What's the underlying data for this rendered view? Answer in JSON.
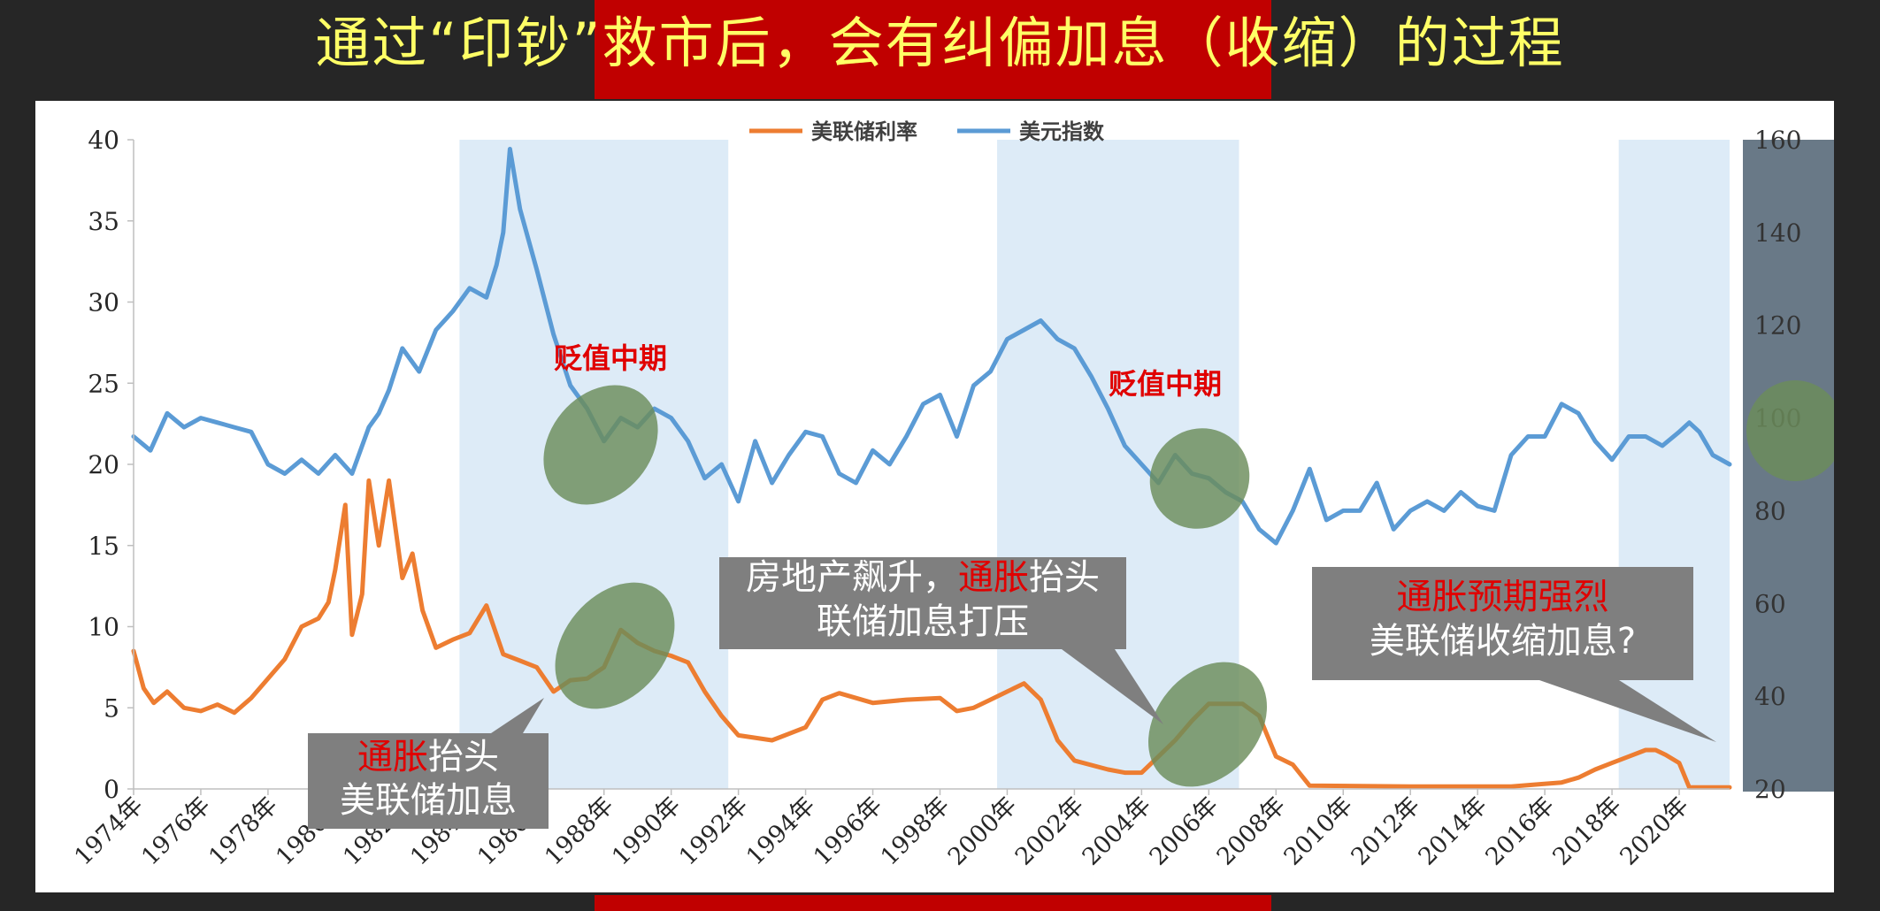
{
  "slide": {
    "title_part1": "通过“印钞”",
    "title_part2": "救市后，会有纠偏加息（收缩）的过程"
  },
  "colors": {
    "fed_rate": "#ed7d31",
    "dollar_index": "#5b9bd5",
    "shade": "#ddebf7",
    "highlight": "#6b8c5a",
    "callout_bg": "#7f7f7f",
    "accent_red": "#e00000",
    "title_yellow": "#ffff66"
  },
  "annotations": {
    "depreciation_1": "贬值中期",
    "depreciation_2": "贬值中期",
    "callout_1": {
      "red": "通胀",
      "line1_rest": "抬头",
      "line2": "美联储加息"
    },
    "callout_2": {
      "line1_pre": "房地产飙升，",
      "red": "通胀",
      "line1_post": "抬头",
      "line2": "联储加息打压"
    },
    "callout_3": {
      "red": "通胀预期强烈",
      "line2": "美联储收缩加息?"
    }
  },
  "chart_data": {
    "type": "line",
    "title": "",
    "legend_position": "top-center",
    "x_ticks": [
      "1974年",
      "1976年",
      "1978年",
      "1980年",
      "1982年",
      "1984年",
      "1986年",
      "1988年",
      "1990年",
      "1992年",
      "1994年",
      "1996年",
      "1998年",
      "2000年",
      "2002年",
      "2004年",
      "2006年",
      "2008年",
      "2010年",
      "2012年",
      "2014年",
      "2016年",
      "2018年",
      "2020年"
    ],
    "xlim": [
      1974,
      2021.5
    ],
    "y_left": {
      "lim": [
        0,
        40
      ],
      "ticks": [
        "0",
        "5",
        "10",
        "15",
        "20",
        "25",
        "30",
        "35",
        "40"
      ]
    },
    "y_right": {
      "lim": [
        20,
        160
      ],
      "ticks": [
        "20",
        "40",
        "60",
        "80",
        "100",
        "120",
        "140",
        "160"
      ]
    },
    "grid": false,
    "shaded_periods": [
      [
        1983.7,
        1991.7
      ],
      [
        1999.7,
        2006.9
      ],
      [
        2018.2,
        2021.5
      ]
    ],
    "series": [
      {
        "name": "美联储利率",
        "axis": "left",
        "x": [
          1974.0,
          1974.3,
          1974.6,
          1975.0,
          1975.5,
          1976.0,
          1976.5,
          1977.0,
          1977.5,
          1978.0,
          1978.5,
          1979.0,
          1979.5,
          1979.8,
          1980.0,
          1980.3,
          1980.5,
          1980.8,
          1981.0,
          1981.3,
          1981.6,
          1982.0,
          1982.3,
          1982.6,
          1983.0,
          1983.5,
          1984.0,
          1984.5,
          1985.0,
          1985.5,
          1986.0,
          1986.5,
          1987.0,
          1987.5,
          1988.0,
          1988.5,
          1989.0,
          1989.5,
          1990.0,
          1990.5,
          1991.0,
          1991.5,
          1992.0,
          1993.0,
          1994.0,
          1994.5,
          1995.0,
          1996.0,
          1997.0,
          1998.0,
          1998.5,
          1999.0,
          1999.5,
          2000.0,
          2000.5,
          2001.0,
          2001.5,
          2002.0,
          2003.0,
          2003.5,
          2004.0,
          2004.5,
          2005.0,
          2005.5,
          2006.0,
          2006.5,
          2007.0,
          2007.5,
          2008.0,
          2008.5,
          2009.0,
          2012.0,
          2015.0,
          2015.9,
          2016.5,
          2017.0,
          2017.5,
          2018.0,
          2018.5,
          2019.0,
          2019.3,
          2019.6,
          2020.0,
          2020.3,
          2021.0,
          2021.5
        ],
        "values": [
          8.5,
          6.2,
          5.3,
          6.0,
          5.0,
          4.8,
          5.2,
          4.7,
          5.6,
          6.8,
          8.0,
          10.0,
          10.5,
          11.5,
          13.5,
          17.5,
          9.5,
          12.0,
          19.0,
          15.0,
          19.0,
          13.0,
          14.5,
          11.0,
          8.7,
          9.2,
          9.6,
          11.3,
          8.3,
          7.9,
          7.5,
          6.0,
          6.7,
          6.8,
          7.5,
          9.8,
          9.0,
          8.5,
          8.2,
          7.8,
          6.0,
          4.5,
          3.3,
          3.0,
          3.8,
          5.5,
          5.9,
          5.3,
          5.5,
          5.6,
          4.8,
          5.0,
          5.5,
          6.0,
          6.5,
          5.5,
          3.0,
          1.75,
          1.2,
          1.0,
          1.0,
          2.0,
          3.0,
          4.2,
          5.25,
          5.25,
          5.25,
          4.5,
          2.0,
          1.5,
          0.2,
          0.15,
          0.15,
          0.3,
          0.4,
          0.7,
          1.2,
          1.6,
          2.0,
          2.4,
          2.4,
          2.1,
          1.6,
          0.1,
          0.1,
          0.1
        ]
      },
      {
        "name": "美元指数",
        "axis": "right",
        "x": [
          1974.0,
          1974.5,
          1975.0,
          1975.5,
          1976.0,
          1976.5,
          1977.0,
          1977.5,
          1978.0,
          1978.5,
          1979.0,
          1979.5,
          1980.0,
          1980.5,
          1981.0,
          1981.3,
          1981.6,
          1982.0,
          1982.5,
          1983.0,
          1983.5,
          1984.0,
          1984.5,
          1984.8,
          1985.0,
          1985.2,
          1985.5,
          1986.0,
          1986.5,
          1987.0,
          1987.5,
          1988.0,
          1988.5,
          1989.0,
          1989.5,
          1990.0,
          1990.5,
          1991.0,
          1991.5,
          1992.0,
          1992.5,
          1993.0,
          1993.5,
          1994.0,
          1994.5,
          1995.0,
          1995.5,
          1996.0,
          1996.5,
          1997.0,
          1997.5,
          1998.0,
          1998.5,
          1999.0,
          1999.5,
          2000.0,
          2000.5,
          2001.0,
          2001.5,
          2002.0,
          2002.5,
          2003.0,
          2003.5,
          2004.0,
          2004.5,
          2005.0,
          2005.5,
          2006.0,
          2006.5,
          2007.0,
          2007.5,
          2008.0,
          2008.5,
          2009.0,
          2009.5,
          2010.0,
          2010.5,
          2011.0,
          2011.5,
          2012.0,
          2012.5,
          2013.0,
          2013.5,
          2014.0,
          2014.5,
          2015.0,
          2015.5,
          2016.0,
          2016.5,
          2017.0,
          2017.5,
          2018.0,
          2018.5,
          2019.0,
          2019.5,
          2020.0,
          2020.3,
          2020.6,
          2021.0,
          2021.5
        ],
        "values": [
          96,
          93,
          101,
          98,
          100,
          99,
          98,
          97,
          90,
          88,
          91,
          88,
          92,
          88,
          98,
          101,
          106,
          115,
          110,
          119,
          123,
          128,
          126,
          133,
          140,
          158,
          145,
          132,
          118,
          107,
          102,
          95,
          100,
          98,
          102,
          100,
          95,
          87,
          90,
          82,
          95,
          86,
          92,
          97,
          96,
          88,
          86,
          93,
          90,
          96,
          103,
          105,
          96,
          107,
          110,
          117,
          119,
          121,
          117,
          115,
          109,
          102,
          94,
          90,
          86,
          92,
          88,
          87,
          84,
          82,
          76,
          73,
          80,
          89,
          78,
          80,
          80,
          86,
          76,
          80,
          82,
          80,
          84,
          81,
          80,
          92,
          96,
          96,
          103,
          101,
          95,
          91,
          96,
          96,
          94,
          97,
          99,
          97,
          92,
          90
        ]
      }
    ]
  }
}
